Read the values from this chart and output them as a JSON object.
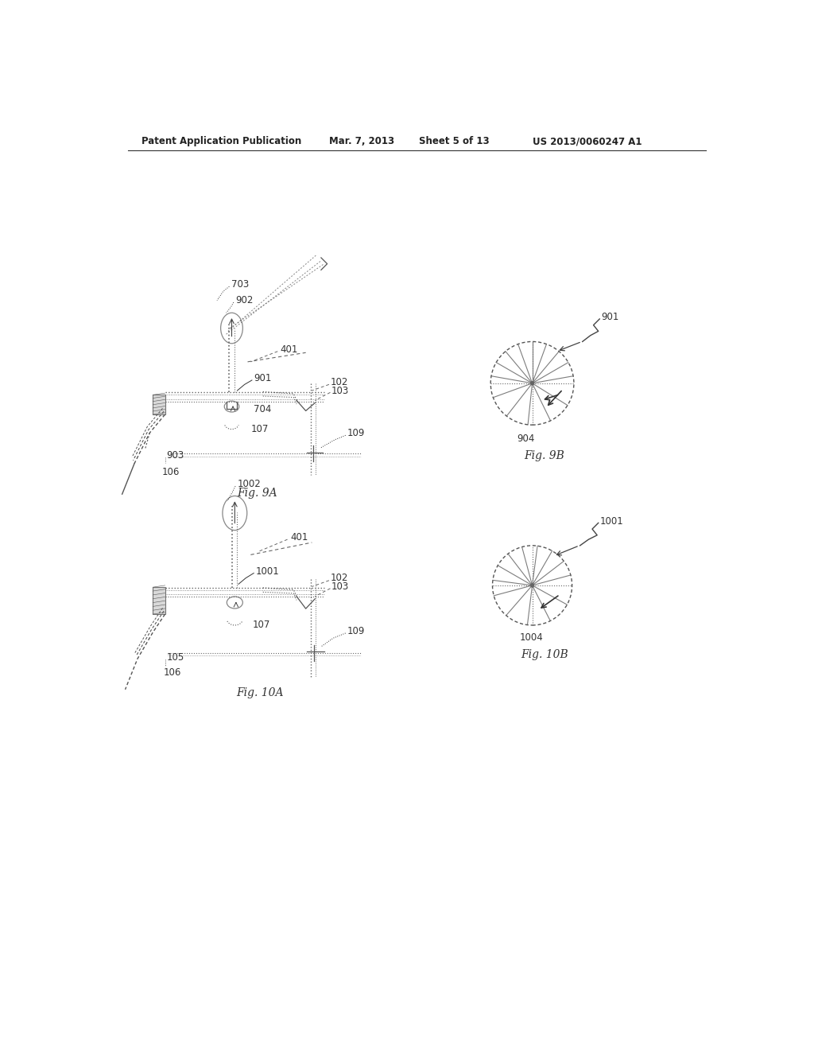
{
  "bg_color": "#ffffff",
  "line_color": "#555555",
  "text_color": "#333333",
  "header_text": "Patent Application Publication",
  "header_date": "Mar. 7, 2013",
  "header_sheet": "Sheet 5 of 13",
  "header_patent": "US 2013/0060247 A1",
  "fig9A_label": "Fig. 9A",
  "fig9B_label": "Fig. 9B",
  "fig10A_label": "Fig. 10A",
  "fig10B_label": "Fig. 10B"
}
